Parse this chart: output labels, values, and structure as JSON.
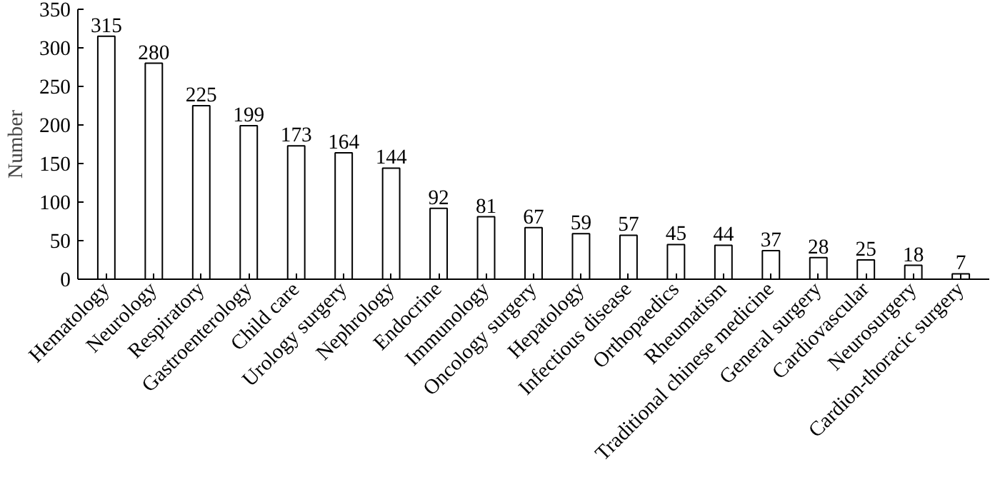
{
  "chart_data": {
    "type": "bar",
    "ylabel": "Number",
    "categories": [
      "Hematology",
      "Neurology",
      "Respiratory",
      "Gastroenterology",
      "Child care",
      "Urology surgery",
      "Nephrology",
      "Endocrine",
      "Immunology",
      "Oncology surgery",
      "Hepatology",
      "Infectious disease",
      "Orthopaedics",
      "Rheumatism",
      "Traditional chinese medicine",
      "General surgery",
      "Cardiovascular",
      "Neurosurgery",
      "Cardion-thoracic surgery"
    ],
    "values": [
      315,
      280,
      225,
      199,
      173,
      164,
      144,
      92,
      81,
      67,
      59,
      57,
      45,
      44,
      37,
      28,
      25,
      18,
      7
    ],
    "color": "#ffffff",
    "ylim": [
      0,
      350
    ],
    "yticks": [
      0,
      50,
      100,
      150,
      200,
      250,
      300,
      350
    ],
    "data_labels": true
  }
}
